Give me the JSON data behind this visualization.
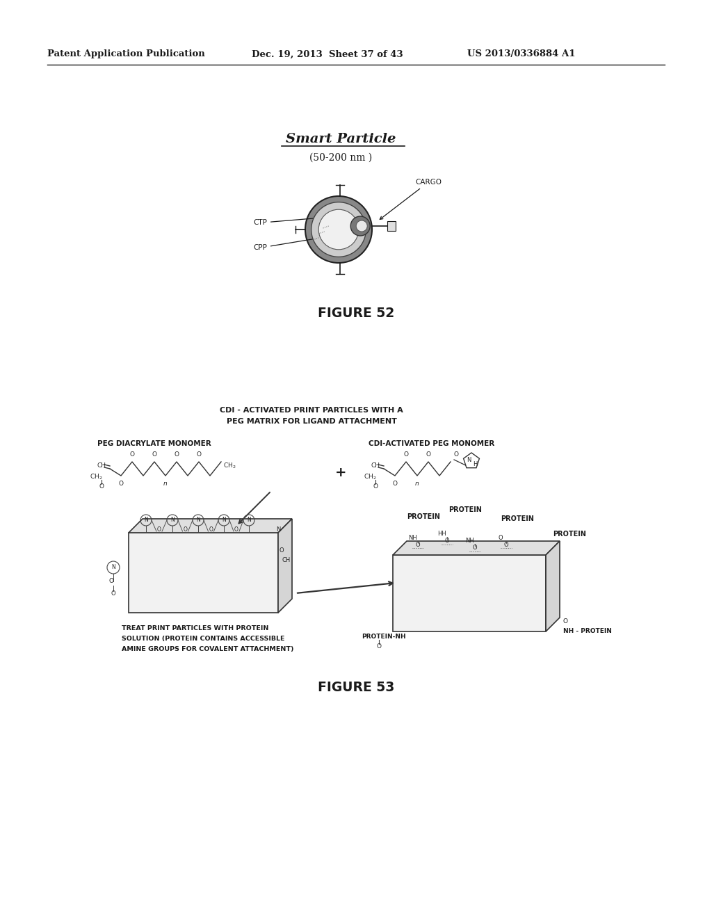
{
  "background_color": "#f5f5f0",
  "header_left": "Patent Application Publication",
  "header_mid": "Dec. 19, 2013  Sheet 37 of 43",
  "header_right": "US 2013/0336884 A1",
  "fig52_title": "Smart Particle",
  "fig52_subtitle": "(50-200 nm )",
  "fig52_label": "FIGURE 52",
  "fig52_cargo": "CARGO",
  "fig52_ctp": "CTP",
  "fig52_cpp": "CPP",
  "fig53_label": "FIGURE 53",
  "fig53_title_line1": "CDI - ACTIVATED PRINT PARTICLES WITH A",
  "fig53_title_line2": "PEG MATRIX FOR LIGAND ATTACHMENT",
  "fig53_peg_label": "PEG DIACRYLATE MONOMER",
  "fig53_cdi_label": "CDI-ACTIVATED PEG MONOMER",
  "fig53_treat_line1": "TREAT PRINT PARTICLES WITH PROTEIN",
  "fig53_treat_line2": "SOLUTION (PROTEIN CONTAINS ACCESSIBLE",
  "fig53_treat_line3": "AMINE GROUPS FOR COVALENT ATTACHMENT)",
  "page_width": 10.24,
  "page_height": 13.2,
  "text_color": "#1a1a1a"
}
